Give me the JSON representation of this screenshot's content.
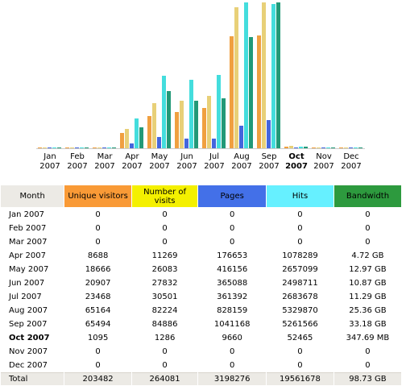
{
  "colors": {
    "visitors": "#f0a040",
    "visits": "#e8d078",
    "pages": "#4466dd",
    "hits": "#44dddd",
    "bandwidth": "#229977",
    "header_month_bg": "#eceae5",
    "header_visitors_bg": "#f99a36",
    "header_visits_bg": "#f4f000",
    "header_pages_bg": "#4370e8",
    "header_hits_bg": "#66f0ff",
    "header_bandwidth_bg": "#2d9a3e"
  },
  "chart_data": {
    "type": "bar",
    "categories": [
      "Jan 2007",
      "Feb 2007",
      "Mar 2007",
      "Apr 2007",
      "May 2007",
      "Jun 2007",
      "Jul 2007",
      "Aug 2007",
      "Sep 2007",
      "Oct 2007",
      "Nov 2007",
      "Dec 2007"
    ],
    "current_month_index": 9,
    "series": [
      {
        "name": "Unique visitors",
        "values": [
          0,
          0,
          0,
          8688,
          18666,
          20907,
          23468,
          65164,
          65494,
          1095,
          0,
          0
        ]
      },
      {
        "name": "Number of visits",
        "values": [
          0,
          0,
          0,
          11269,
          26083,
          27832,
          30501,
          82224,
          84886,
          1286,
          0,
          0
        ]
      },
      {
        "name": "Pages",
        "values": [
          0,
          0,
          0,
          176653,
          416156,
          365088,
          361392,
          828159,
          1041168,
          9660,
          0,
          0
        ]
      },
      {
        "name": "Hits",
        "values": [
          0,
          0,
          0,
          1078289,
          2657099,
          2498711,
          2683678,
          5329870,
          5261566,
          52465,
          0,
          0
        ]
      },
      {
        "name": "Bandwidth",
        "values": [
          0,
          0,
          0,
          4.72,
          12.97,
          10.87,
          11.29,
          25.36,
          33.18,
          0.34,
          0,
          0
        ]
      }
    ]
  },
  "table": {
    "headers": {
      "month": "Month",
      "visitors": "Unique visitors",
      "visits": "Number of visits",
      "pages": "Pages",
      "hits": "Hits",
      "bandwidth": "Bandwidth"
    },
    "rows": [
      {
        "month": "Jan 2007",
        "visitors": "0",
        "visits": "0",
        "pages": "0",
        "hits": "0",
        "bandwidth": "0"
      },
      {
        "month": "Feb 2007",
        "visitors": "0",
        "visits": "0",
        "pages": "0",
        "hits": "0",
        "bandwidth": "0"
      },
      {
        "month": "Mar 2007",
        "visitors": "0",
        "visits": "0",
        "pages": "0",
        "hits": "0",
        "bandwidth": "0"
      },
      {
        "month": "Apr 2007",
        "visitors": "8688",
        "visits": "11269",
        "pages": "176653",
        "hits": "1078289",
        "bandwidth": "4.72 GB"
      },
      {
        "month": "May 2007",
        "visitors": "18666",
        "visits": "26083",
        "pages": "416156",
        "hits": "2657099",
        "bandwidth": "12.97 GB"
      },
      {
        "month": "Jun 2007",
        "visitors": "20907",
        "visits": "27832",
        "pages": "365088",
        "hits": "2498711",
        "bandwidth": "10.87 GB"
      },
      {
        "month": "Jul 2007",
        "visitors": "23468",
        "visits": "30501",
        "pages": "361392",
        "hits": "2683678",
        "bandwidth": "11.29 GB"
      },
      {
        "month": "Aug 2007",
        "visitors": "65164",
        "visits": "82224",
        "pages": "828159",
        "hits": "5329870",
        "bandwidth": "25.36 GB"
      },
      {
        "month": "Sep 2007",
        "visitors": "65494",
        "visits": "84886",
        "pages": "1041168",
        "hits": "5261566",
        "bandwidth": "33.18 GB"
      },
      {
        "month": "Oct 2007",
        "visitors": "1095",
        "visits": "1286",
        "pages": "9660",
        "hits": "52465",
        "bandwidth": "347.69 MB",
        "current": true
      },
      {
        "month": "Nov 2007",
        "visitors": "0",
        "visits": "0",
        "pages": "0",
        "hits": "0",
        "bandwidth": "0"
      },
      {
        "month": "Dec 2007",
        "visitors": "0",
        "visits": "0",
        "pages": "0",
        "hits": "0",
        "bandwidth": "0"
      }
    ],
    "total": {
      "month": "Total",
      "visitors": "203482",
      "visits": "264081",
      "pages": "3198276",
      "hits": "19561678",
      "bandwidth": "98.73 GB"
    }
  }
}
